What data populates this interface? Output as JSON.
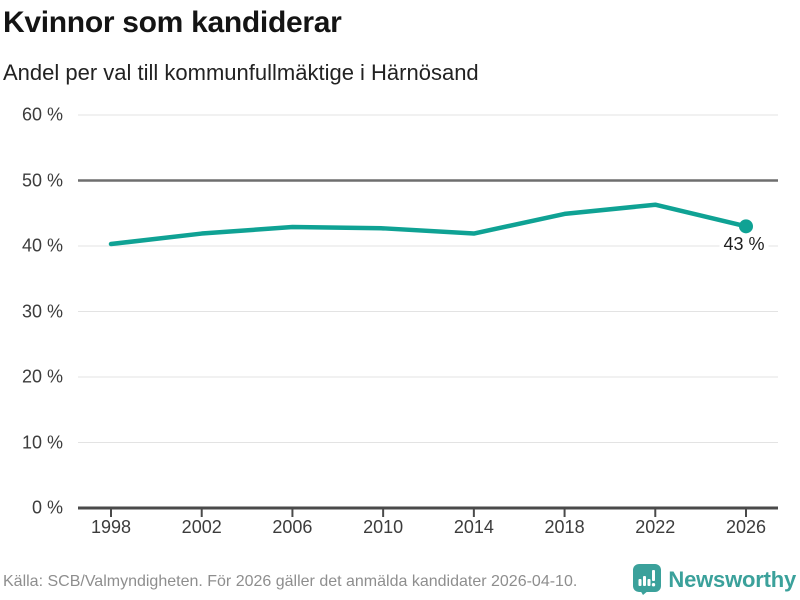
{
  "chart_data": {
    "type": "line",
    "title": "Kvinnor som kandiderar",
    "subtitle": "Andel per val till kommunfullmäktige i Härnösand",
    "categories": [
      "1998",
      "2002",
      "2006",
      "2010",
      "2014",
      "2018",
      "2022",
      "2026"
    ],
    "values": [
      40.3,
      41.9,
      42.9,
      42.7,
      41.9,
      44.9,
      46.3,
      43
    ],
    "unit": "%",
    "ylim": [
      0,
      60
    ],
    "ytick_values": [
      0,
      10,
      20,
      30,
      40,
      50,
      60
    ],
    "ytick_labels": [
      "0 %",
      "10 %",
      "20 %",
      "30 %",
      "40 %",
      "50 %",
      "60 %"
    ],
    "reference_value": 50,
    "end_label": "43 %",
    "grid": "horizontal",
    "legend": "none",
    "colors": {
      "line": "#0fa294",
      "reference_line": "#6e6e6e",
      "gridline": "#e3e3e3",
      "axis": "#4a4a4a"
    }
  },
  "footer": {
    "source": "Källa: SCB/Valmyndigheten. För 2026 gäller det anmälda kandidater 2026-04-10.",
    "brand": "Newsworthy",
    "brand_color": "#3ba19b"
  }
}
